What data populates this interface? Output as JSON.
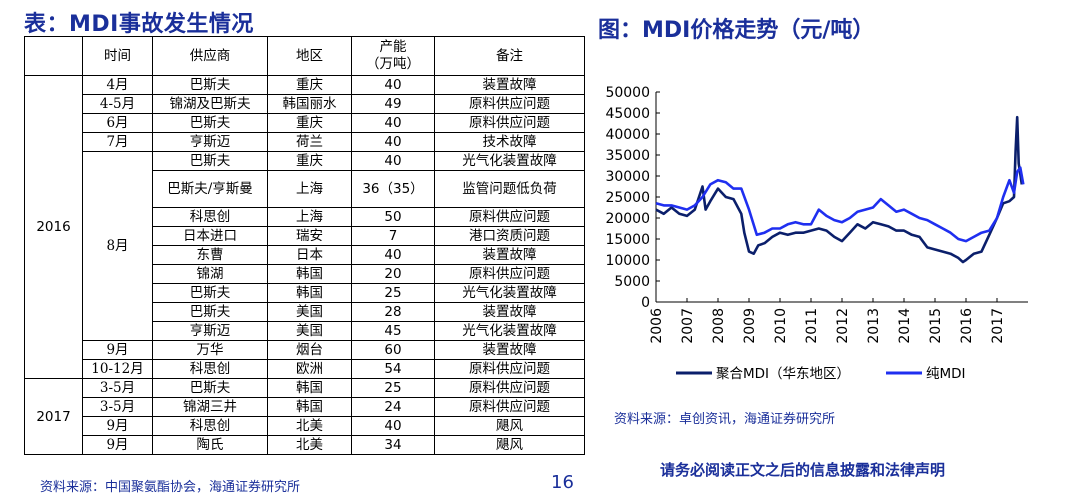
{
  "left_title": "表：MDI事故发生情况",
  "table": {
    "headers": [
      "时间",
      "供应商",
      "地区",
      "产能\n（万吨）",
      "备注"
    ],
    "groups": [
      {
        "year": "2016",
        "periods": [
          {
            "month": "4月",
            "rows": [
              [
                "巴斯夫",
                "重庆",
                "40",
                "装置故障"
              ]
            ]
          },
          {
            "month": "4-5月",
            "rows": [
              [
                "锦湖及巴斯夫",
                "韩国丽水",
                "49",
                "原料供应问题"
              ]
            ]
          },
          {
            "month": "6月",
            "rows": [
              [
                "巴斯夫",
                "重庆",
                "40",
                "原料供应问题"
              ]
            ]
          },
          {
            "month": "7月",
            "rows": [
              [
                "亨斯迈",
                "荷兰",
                "40",
                "技术故障"
              ]
            ]
          },
          {
            "month": "8月",
            "rows": [
              [
                "巴斯夫",
                "重庆",
                "40",
                "光气化装置故障"
              ],
              [
                "巴斯夫/亨斯曼",
                "上海",
                "36（35）",
                "监管问题低负荷"
              ],
              [
                "科思创",
                "上海",
                "50",
                "原料供应问题"
              ],
              [
                "日本进口",
                "瑞安",
                "7",
                "港口资质问题"
              ],
              [
                "东曹",
                "日本",
                "40",
                "装置故障"
              ],
              [
                "锦湖",
                "韩国",
                "20",
                "原料供应问题"
              ],
              [
                "巴斯夫",
                "韩国",
                "25",
                "光气化装置故障"
              ],
              [
                "巴斯夫",
                "美国",
                "28",
                "装置故障"
              ],
              [
                "亨斯迈",
                "美国",
                "45",
                "光气化装置故障"
              ]
            ]
          },
          {
            "month": "9月",
            "rows": [
              [
                "万华",
                "烟台",
                "60",
                "装置故障"
              ]
            ]
          },
          {
            "month": "10-12月",
            "rows": [
              [
                "科思创",
                "欧洲",
                "54",
                "原料供应问题"
              ]
            ]
          }
        ]
      },
      {
        "year": "2017",
        "periods": [
          {
            "month": "3-5月",
            "rows": [
              [
                "巴斯夫",
                "韩国",
                "25",
                "原料供应问题"
              ]
            ]
          },
          {
            "month": "3-5月",
            "rows": [
              [
                "锦湖三井",
                "韩国",
                "24",
                "原料供应问题"
              ]
            ]
          },
          {
            "month": "9月",
            "rows": [
              [
                "科思创",
                "北美",
                "40",
                "飓风"
              ]
            ]
          },
          {
            "month": "9月",
            "rows": [
              [
                "陶氏",
                "北美",
                "34",
                "飓风"
              ]
            ]
          }
        ]
      }
    ]
  },
  "left_source": "资料来源：中国聚氨酯协会，海通证券研究所",
  "page_number": "16",
  "right_title": "图：MDI价格走势（元/吨）",
  "right_source": "资料来源：卓创资讯，海通证券研究所",
  "disclaimer": "请务必阅读正文之后的信息披露和法律声明",
  "chart_data": {
    "type": "line",
    "title": "图：MDI价格走势（元/吨）",
    "ylim": [
      0,
      50000
    ],
    "yticks": [
      0,
      5000,
      10000,
      15000,
      20000,
      25000,
      30000,
      35000,
      40000,
      45000,
      50000
    ],
    "xlim": [
      2006,
      2018
    ],
    "xticks": [
      "2006",
      "2007",
      "2008",
      "2009",
      "2010",
      "2011",
      "2012",
      "2013",
      "2014",
      "2015",
      "2016",
      "2017"
    ],
    "legend_position": "bottom",
    "grid": false,
    "series": [
      {
        "name": "聚合MDI（华东地区）",
        "color": "#0b1f6b",
        "x": [
          2006.0,
          2006.25,
          2006.5,
          2006.75,
          2007.0,
          2007.25,
          2007.5,
          2007.6,
          2007.75,
          2008.0,
          2008.25,
          2008.5,
          2008.75,
          2008.85,
          2009.0,
          2009.15,
          2009.3,
          2009.5,
          2009.75,
          2010.0,
          2010.25,
          2010.5,
          2010.75,
          2011.0,
          2011.25,
          2011.5,
          2011.75,
          2012.0,
          2012.25,
          2012.5,
          2012.75,
          2013.0,
          2013.25,
          2013.5,
          2013.75,
          2014.0,
          2014.25,
          2014.5,
          2014.75,
          2015.0,
          2015.25,
          2015.5,
          2015.75,
          2015.9,
          2016.0,
          2016.25,
          2016.5,
          2016.75,
          2017.0,
          2017.2,
          2017.4,
          2017.55,
          2017.6,
          2017.65,
          2017.7,
          2017.8
        ],
        "y": [
          22000,
          21000,
          22500,
          21000,
          20500,
          22000,
          27500,
          22000,
          24000,
          27000,
          25000,
          24500,
          21000,
          16500,
          12000,
          11500,
          13500,
          14000,
          15500,
          16500,
          16000,
          16500,
          16500,
          17000,
          17500,
          17000,
          15500,
          14500,
          16500,
          18500,
          17500,
          19000,
          18500,
          18000,
          17000,
          17000,
          16000,
          15500,
          13000,
          12500,
          12000,
          11500,
          10500,
          9500,
          10000,
          11500,
          12000,
          16000,
          20000,
          23500,
          24000,
          25000,
          36000,
          44000,
          33000,
          28000
        ]
      },
      {
        "name": "纯MDI",
        "color": "#1f2ff0",
        "x": [
          2006.0,
          2006.25,
          2006.5,
          2006.75,
          2007.0,
          2007.25,
          2007.5,
          2007.75,
          2008.0,
          2008.25,
          2008.5,
          2008.75,
          2009.0,
          2009.25,
          2009.5,
          2009.75,
          2010.0,
          2010.25,
          2010.5,
          2010.75,
          2011.0,
          2011.25,
          2011.5,
          2011.75,
          2012.0,
          2012.25,
          2012.5,
          2012.75,
          2013.0,
          2013.25,
          2013.5,
          2013.75,
          2014.0,
          2014.25,
          2014.5,
          2014.75,
          2015.0,
          2015.25,
          2015.5,
          2015.75,
          2016.0,
          2016.25,
          2016.5,
          2016.75,
          2017.0,
          2017.2,
          2017.4,
          2017.55,
          2017.65,
          2017.75,
          2017.85
        ],
        "y": [
          23500,
          23000,
          23000,
          22500,
          22000,
          23000,
          25000,
          28000,
          29000,
          28500,
          27000,
          27000,
          22000,
          16000,
          16500,
          17500,
          17500,
          18500,
          19000,
          18500,
          18500,
          22000,
          20500,
          19500,
          19000,
          20000,
          21500,
          22000,
          22500,
          24500,
          23000,
          21500,
          22000,
          21000,
          20000,
          19500,
          18500,
          17500,
          16500,
          15000,
          14500,
          15500,
          16500,
          17000,
          20000,
          25000,
          29000,
          26000,
          31000,
          32000,
          28000
        ]
      }
    ]
  }
}
